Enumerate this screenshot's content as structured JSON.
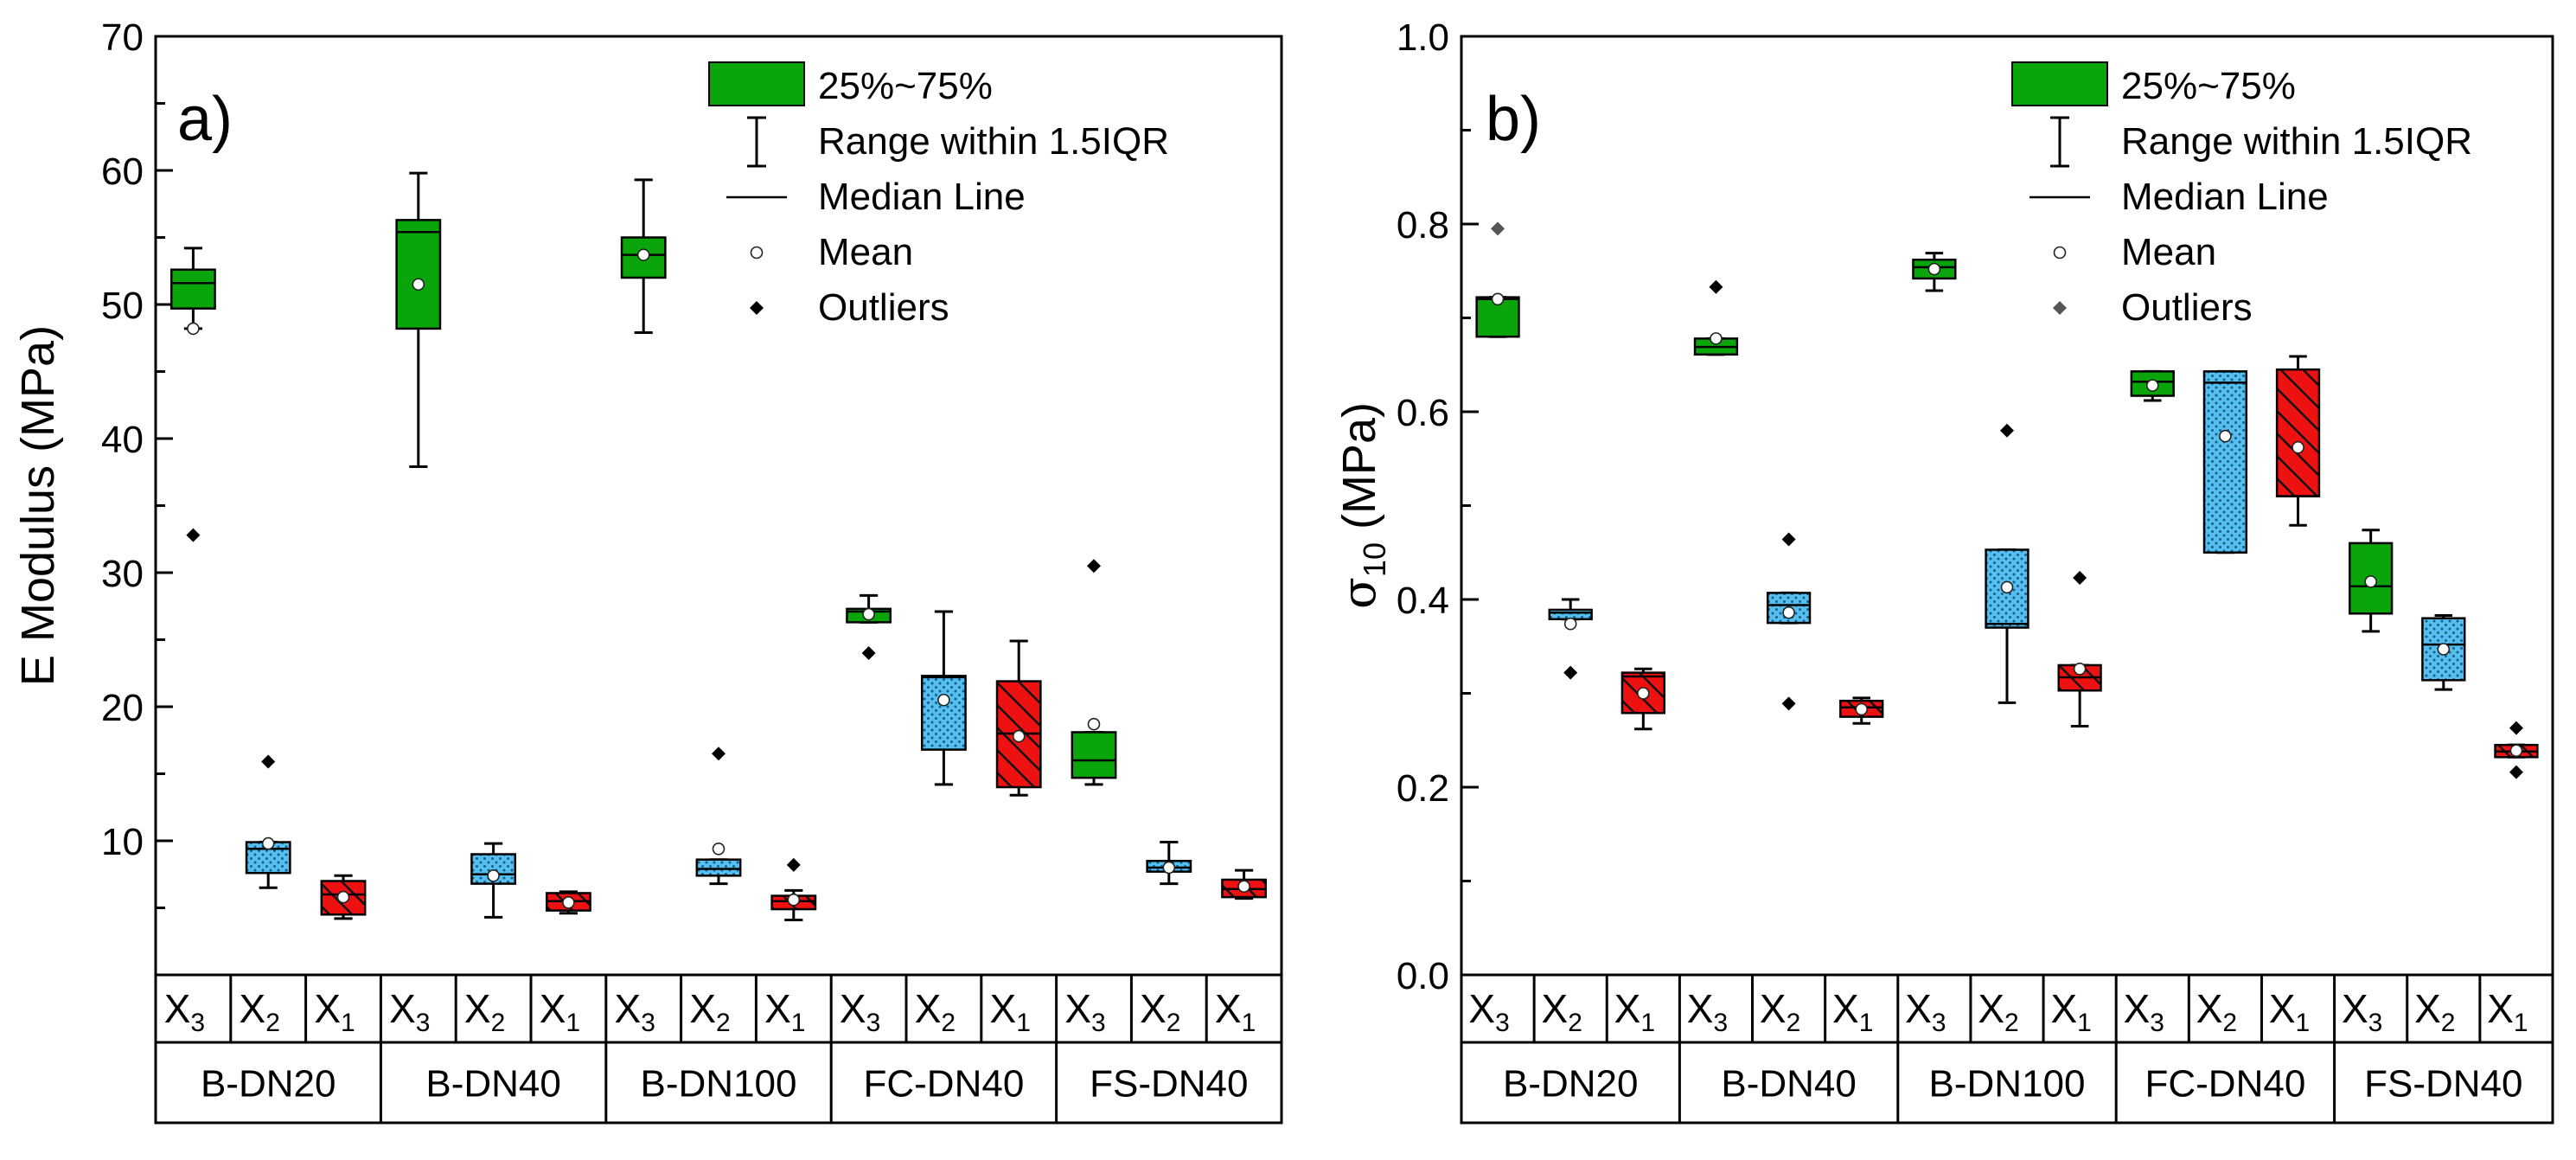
{
  "chart_data": [
    {
      "type": "boxplot",
      "panel_label": "a)",
      "ylabel": "E Modulus (MPa)",
      "ylim": [
        0,
        70
      ],
      "yticks": [
        10,
        20,
        30,
        40,
        50,
        60,
        70
      ],
      "groups": [
        "B-DN20",
        "B-DN40",
        "B-DN100",
        "FC-DN40",
        "FS-DN40"
      ],
      "subcats": [
        "X",
        "X",
        "X"
      ],
      "subcat_subscripts": [
        "3",
        "2",
        "1"
      ],
      "series_style": [
        "green",
        "blue-dots",
        "red-hatch"
      ],
      "boxes": [
        {
          "group": 0,
          "sub": 0,
          "q1": 49.7,
          "med": 51.6,
          "q3": 52.6,
          "min": 48.2,
          "max": 54.2,
          "mean": 48.2,
          "outliers": [
            32.8
          ]
        },
        {
          "group": 0,
          "sub": 1,
          "q1": 7.6,
          "med": 9.4,
          "q3": 9.9,
          "min": 6.5,
          "max": 9.9,
          "mean": 9.8,
          "outliers": [
            15.9
          ]
        },
        {
          "group": 0,
          "sub": 2,
          "q1": 4.5,
          "med": 6.0,
          "q3": 7.0,
          "min": 4.2,
          "max": 7.4,
          "mean": 5.8,
          "outliers": []
        },
        {
          "group": 1,
          "sub": 0,
          "q1": 48.2,
          "med": 55.4,
          "q3": 56.3,
          "min": 37.9,
          "max": 59.8,
          "mean": 51.5,
          "outliers": []
        },
        {
          "group": 1,
          "sub": 1,
          "q1": 6.8,
          "med": 7.5,
          "q3": 9.0,
          "min": 4.3,
          "max": 9.8,
          "mean": 7.4,
          "outliers": []
        },
        {
          "group": 1,
          "sub": 2,
          "q1": 4.8,
          "med": 5.5,
          "q3": 6.1,
          "min": 4.6,
          "max": 6.2,
          "mean": 5.4,
          "outliers": []
        },
        {
          "group": 2,
          "sub": 0,
          "q1": 52.0,
          "med": 53.7,
          "q3": 55.0,
          "min": 47.9,
          "max": 59.3,
          "mean": 53.7,
          "outliers": []
        },
        {
          "group": 2,
          "sub": 1,
          "q1": 7.4,
          "med": 7.9,
          "q3": 8.6,
          "min": 6.8,
          "max": 8.6,
          "mean": 9.4,
          "outliers": [
            16.5
          ]
        },
        {
          "group": 2,
          "sub": 2,
          "q1": 4.9,
          "med": 5.5,
          "q3": 5.9,
          "min": 4.1,
          "max": 6.3,
          "mean": 5.6,
          "outliers": [
            8.2
          ]
        },
        {
          "group": 3,
          "sub": 0,
          "q1": 26.3,
          "med": 27.1,
          "q3": 27.3,
          "min": 26.3,
          "max": 28.3,
          "mean": 26.9,
          "outliers": [
            24.0
          ]
        },
        {
          "group": 3,
          "sub": 1,
          "q1": 16.8,
          "med": 22.2,
          "q3": 22.3,
          "min": 14.2,
          "max": 27.1,
          "mean": 20.5,
          "outliers": []
        },
        {
          "group": 3,
          "sub": 2,
          "q1": 14.0,
          "med": 18.0,
          "q3": 21.9,
          "min": 13.4,
          "max": 24.9,
          "mean": 17.8,
          "outliers": []
        },
        {
          "group": 4,
          "sub": 0,
          "q1": 14.7,
          "med": 16.0,
          "q3": 18.1,
          "min": 14.2,
          "max": 18.1,
          "mean": 18.7,
          "outliers": [
            30.5
          ]
        },
        {
          "group": 4,
          "sub": 1,
          "q1": 7.7,
          "med": 8.0,
          "q3": 8.5,
          "min": 6.8,
          "max": 9.9,
          "mean": 8.0,
          "outliers": []
        },
        {
          "group": 4,
          "sub": 2,
          "q1": 5.8,
          "med": 6.4,
          "q3": 7.1,
          "min": 5.7,
          "max": 7.8,
          "mean": 6.6,
          "outliers": []
        }
      ],
      "legend": {
        "box": "25%~75%",
        "range": "Range within 1.5IQR",
        "median": "Median Line",
        "mean": "Mean",
        "outliers": "Outliers"
      }
    },
    {
      "type": "boxplot",
      "panel_label": "b)",
      "ylabel_symbol": "σ",
      "ylabel_subscript": "10",
      "ylabel_unit": " (MPa)",
      "ylim": [
        0,
        1.0
      ],
      "yticks": [
        0.0,
        0.2,
        0.4,
        0.6,
        0.8,
        1.0
      ],
      "ytick_labels": [
        "0.0",
        "0.2",
        "0.4",
        "0.6",
        "0.8",
        "1.0"
      ],
      "groups": [
        "B-DN20",
        "B-DN40",
        "B-DN100",
        "FC-DN40",
        "FS-DN40"
      ],
      "subcats": [
        "X",
        "X",
        "X"
      ],
      "subcat_subscripts": [
        "3",
        "2",
        "1"
      ],
      "series_style": [
        "green",
        "blue-dots",
        "red-hatch"
      ],
      "boxes": [
        {
          "group": 0,
          "sub": 0,
          "q1": 0.68,
          "med": 0.72,
          "q3": 0.722,
          "min": 0.68,
          "max": 0.722,
          "mean": 0.72,
          "outliers": [
            0.795
          ]
        },
        {
          "group": 0,
          "sub": 1,
          "q1": 0.379,
          "med": 0.386,
          "q3": 0.389,
          "min": 0.379,
          "max": 0.4,
          "mean": 0.374,
          "outliers": [
            0.322
          ]
        },
        {
          "group": 0,
          "sub": 2,
          "q1": 0.279,
          "med": 0.318,
          "q3": 0.322,
          "min": 0.262,
          "max": 0.326,
          "mean": 0.3,
          "outliers": []
        },
        {
          "group": 1,
          "sub": 0,
          "q1": 0.661,
          "med": 0.669,
          "q3": 0.678,
          "min": 0.661,
          "max": 0.678,
          "mean": 0.678,
          "outliers": [
            0.733
          ]
        },
        {
          "group": 1,
          "sub": 1,
          "q1": 0.375,
          "med": 0.394,
          "q3": 0.407,
          "min": 0.375,
          "max": 0.407,
          "mean": 0.386,
          "outliers": [
            0.464,
            0.289
          ]
        },
        {
          "group": 1,
          "sub": 2,
          "q1": 0.275,
          "med": 0.285,
          "q3": 0.292,
          "min": 0.268,
          "max": 0.295,
          "mean": 0.283,
          "outliers": []
        },
        {
          "group": 2,
          "sub": 0,
          "q1": 0.742,
          "med": 0.754,
          "q3": 0.762,
          "min": 0.729,
          "max": 0.769,
          "mean": 0.752,
          "outliers": []
        },
        {
          "group": 2,
          "sub": 1,
          "q1": 0.37,
          "med": 0.374,
          "q3": 0.453,
          "min": 0.29,
          "max": 0.453,
          "mean": 0.413,
          "outliers": [
            0.58
          ]
        },
        {
          "group": 2,
          "sub": 2,
          "q1": 0.303,
          "med": 0.317,
          "q3": 0.33,
          "min": 0.265,
          "max": 0.33,
          "mean": 0.326,
          "outliers": [
            0.423
          ]
        },
        {
          "group": 3,
          "sub": 0,
          "q1": 0.617,
          "med": 0.632,
          "q3": 0.643,
          "min": 0.612,
          "max": 0.643,
          "mean": 0.628,
          "outliers": []
        },
        {
          "group": 3,
          "sub": 1,
          "q1": 0.45,
          "med": 0.631,
          "q3": 0.643,
          "min": 0.45,
          "max": 0.643,
          "mean": 0.574,
          "outliers": []
        },
        {
          "group": 3,
          "sub": 2,
          "q1": 0.51,
          "med": 0.51,
          "q3": 0.645,
          "min": 0.479,
          "max": 0.659,
          "mean": 0.562,
          "outliers": []
        },
        {
          "group": 4,
          "sub": 0,
          "q1": 0.385,
          "med": 0.414,
          "q3": 0.46,
          "min": 0.366,
          "max": 0.474,
          "mean": 0.419,
          "outliers": []
        },
        {
          "group": 4,
          "sub": 1,
          "q1": 0.314,
          "med": 0.352,
          "q3": 0.38,
          "min": 0.304,
          "max": 0.383,
          "mean": 0.347,
          "outliers": []
        },
        {
          "group": 4,
          "sub": 2,
          "q1": 0.232,
          "med": 0.238,
          "q3": 0.245,
          "min": 0.232,
          "max": 0.245,
          "mean": 0.239,
          "outliers": [
            0.263,
            0.216
          ]
        }
      ],
      "legend": {
        "box": "25%~75%",
        "range": "Range within 1.5IQR",
        "median": "Median Line",
        "mean": "Mean",
        "outliers": "Outliers"
      }
    }
  ],
  "colors": {
    "green": "#0aa50a",
    "blue": "#55bff0",
    "red": "#ee1111",
    "outlier_b": "#555555"
  }
}
